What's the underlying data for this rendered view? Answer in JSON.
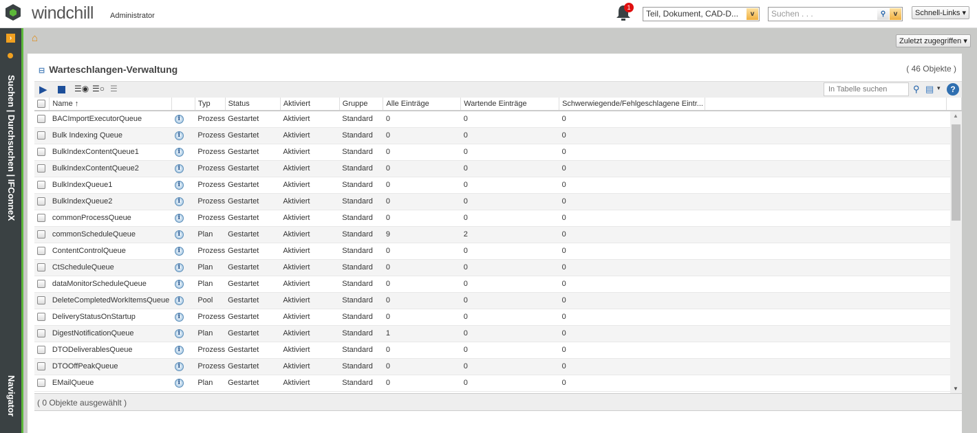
{
  "header": {
    "brand": "windchill",
    "role": "Administrator",
    "notifications": "1",
    "type_select": "Teil, Dokument, CAD-D...",
    "search_placeholder": "Suchen . . .",
    "quick_links": "Schnell-Links"
  },
  "sidebar": {
    "top_label": "Suchen | Durchsuchen | IFConneX",
    "bottom_label": "Navigator"
  },
  "nav": {
    "recent": "Zuletzt zugegriffen"
  },
  "panel": {
    "title": "Warteschlangen-Verwaltung",
    "count": "( 46 Objekte )",
    "table_search_placeholder": "In Tabelle suchen",
    "footer": "( 0 Objekte ausgewählt )",
    "columns": [
      "Name ↑",
      "",
      "Typ",
      "Status",
      "Aktiviert",
      "Gruppe",
      "Alle Einträge",
      "Wartende Einträge",
      "Schwerwiegende/Fehlgeschlagene Eintr..."
    ],
    "rows": [
      [
        "BACImportExecutorQueue",
        "Prozess",
        "Gestartet",
        "Aktiviert",
        "Standard",
        "0",
        "0",
        "0"
      ],
      [
        "Bulk Indexing Queue",
        "Prozess",
        "Gestartet",
        "Aktiviert",
        "Standard",
        "0",
        "0",
        "0"
      ],
      [
        "BulkIndexContentQueue1",
        "Prozess",
        "Gestartet",
        "Aktiviert",
        "Standard",
        "0",
        "0",
        "0"
      ],
      [
        "BulkIndexContentQueue2",
        "Prozess",
        "Gestartet",
        "Aktiviert",
        "Standard",
        "0",
        "0",
        "0"
      ],
      [
        "BulkIndexQueue1",
        "Prozess",
        "Gestartet",
        "Aktiviert",
        "Standard",
        "0",
        "0",
        "0"
      ],
      [
        "BulkIndexQueue2",
        "Prozess",
        "Gestartet",
        "Aktiviert",
        "Standard",
        "0",
        "0",
        "0"
      ],
      [
        "commonProcessQueue",
        "Prozess",
        "Gestartet",
        "Aktiviert",
        "Standard",
        "0",
        "0",
        "0"
      ],
      [
        "commonScheduleQueue",
        "Plan",
        "Gestartet",
        "Aktiviert",
        "Standard",
        "9",
        "2",
        "0"
      ],
      [
        "ContentControlQueue",
        "Prozess",
        "Gestartet",
        "Aktiviert",
        "Standard",
        "0",
        "0",
        "0"
      ],
      [
        "CtScheduleQueue",
        "Plan",
        "Gestartet",
        "Aktiviert",
        "Standard",
        "0",
        "0",
        "0"
      ],
      [
        "dataMonitorScheduleQueue",
        "Plan",
        "Gestartet",
        "Aktiviert",
        "Standard",
        "0",
        "0",
        "0"
      ],
      [
        "DeleteCompletedWorkItemsQueue",
        "Pool",
        "Gestartet",
        "Aktiviert",
        "Standard",
        "0",
        "0",
        "0"
      ],
      [
        "DeliveryStatusOnStartup",
        "Prozess",
        "Gestartet",
        "Aktiviert",
        "Standard",
        "0",
        "0",
        "0"
      ],
      [
        "DigestNotificationQueue",
        "Plan",
        "Gestartet",
        "Aktiviert",
        "Standard",
        "1",
        "0",
        "0"
      ],
      [
        "DTODeliverablesQueue",
        "Prozess",
        "Gestartet",
        "Aktiviert",
        "Standard",
        "0",
        "0",
        "0"
      ],
      [
        "DTOOffPeakQueue",
        "Prozess",
        "Gestartet",
        "Aktiviert",
        "Standard",
        "0",
        "0",
        "0"
      ],
      [
        "EMailQueue",
        "Plan",
        "Gestartet",
        "Aktiviert",
        "Standard",
        "0",
        "0",
        "0"
      ]
    ]
  },
  "colors": {
    "sidebar": "#3a4143",
    "accent": "#5cb83a",
    "background": "#c9cac8"
  }
}
